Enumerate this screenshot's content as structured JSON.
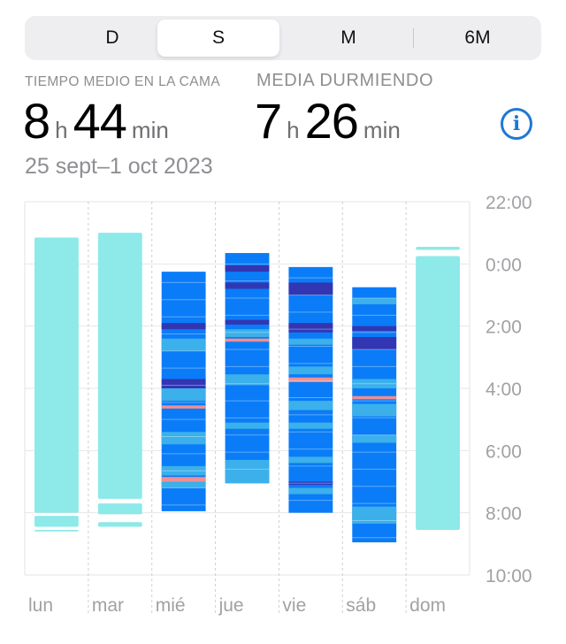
{
  "segments": {
    "items": [
      {
        "label": "D"
      },
      {
        "label": "S"
      },
      {
        "label": "M"
      },
      {
        "label": "6M"
      }
    ],
    "selected": "S"
  },
  "stats": {
    "in_bed_label": "TIEMPO MEDIO EN LA CAMA",
    "in_bed_hours": "8",
    "in_bed_minutes": "44",
    "asleep_label": "MEDIA DURMIENDO",
    "asleep_hours": "7",
    "asleep_minutes": "26",
    "unit_h": "h",
    "unit_min": "min",
    "date_range": "25 sept–1 oct 2023"
  },
  "info_icon": "info-circle-icon",
  "colors": {
    "in_bed": "#8ee9e9",
    "awake": "#f08f90",
    "rem": "#3bb0ea",
    "core": "#0a7cf8",
    "deep": "#3336b3",
    "accent": "#1f77d6"
  },
  "chart_data": {
    "type": "bar",
    "title": "",
    "xlabel": "",
    "ylabel": "",
    "categories": [
      "lun",
      "mar",
      "mié",
      "jue",
      "vie",
      "sáb",
      "dom"
    ],
    "y_ticks": [
      "22:00",
      "0:00",
      "2:00",
      "4:00",
      "6:00",
      "8:00",
      "10:00"
    ],
    "y_range_hours_from_2200": [
      0,
      12
    ],
    "grid": true,
    "in_bed_bars": [
      {
        "day": "lun",
        "segments": [
          [
            1.15,
            10.0
          ],
          [
            10.1,
            10.45
          ],
          [
            10.55,
            10.6
          ]
        ]
      },
      {
        "day": "mar",
        "segments": [
          [
            1.0,
            9.55
          ],
          [
            9.7,
            10.05
          ],
          [
            10.3,
            10.45
          ]
        ]
      },
      {
        "day": "mié",
        "segments": []
      },
      {
        "day": "jue",
        "segments": []
      },
      {
        "day": "vie",
        "segments": []
      },
      {
        "day": "sáb",
        "segments": []
      },
      {
        "day": "dom",
        "segments": [
          [
            1.45,
            1.55
          ],
          [
            1.75,
            10.55
          ]
        ]
      }
    ],
    "sleep_bars": [
      {
        "day": "mié",
        "start": 2.25,
        "end": 9.95
      },
      {
        "day": "jue",
        "start": 1.65,
        "end": 9.05
      },
      {
        "day": "vie",
        "start": 2.1,
        "end": 10.0
      },
      {
        "day": "sáb",
        "start": 2.75,
        "end": 10.95
      }
    ],
    "stages": {
      "mié": [
        {
          "s": "core",
          "a": 2.25,
          "b": 9.95
        },
        {
          "s": "deep",
          "a": 3.9,
          "b": 4.1
        },
        {
          "s": "rem",
          "a": 4.4,
          "b": 4.8
        },
        {
          "s": "deep",
          "a": 5.7,
          "b": 6.0
        },
        {
          "s": "rem",
          "a": 6.0,
          "b": 6.4
        },
        {
          "s": "awake",
          "a": 6.55,
          "b": 6.65
        },
        {
          "s": "rem",
          "a": 7.4,
          "b": 7.8
        },
        {
          "s": "rem",
          "a": 8.5,
          "b": 8.8
        },
        {
          "s": "awake",
          "a": 8.85,
          "b": 9.0
        },
        {
          "s": "rem",
          "a": 9.0,
          "b": 9.2
        }
      ],
      "jue": [
        {
          "s": "core",
          "a": 1.65,
          "b": 9.05
        },
        {
          "s": "deep",
          "a": 2.05,
          "b": 2.25
        },
        {
          "s": "deep",
          "a": 2.6,
          "b": 2.8
        },
        {
          "s": "deep",
          "a": 3.8,
          "b": 3.95
        },
        {
          "s": "rem",
          "a": 4.1,
          "b": 4.35
        },
        {
          "s": "awake",
          "a": 4.4,
          "b": 4.5
        },
        {
          "s": "rem",
          "a": 5.55,
          "b": 5.9
        },
        {
          "s": "rem",
          "a": 7.1,
          "b": 7.3
        },
        {
          "s": "rem",
          "a": 8.3,
          "b": 9.05
        }
      ],
      "vie": [
        {
          "s": "core",
          "a": 2.1,
          "b": 10.0
        },
        {
          "s": "deep",
          "a": 2.6,
          "b": 3.0
        },
        {
          "s": "deep",
          "a": 3.9,
          "b": 4.2
        },
        {
          "s": "rem",
          "a": 4.4,
          "b": 4.6
        },
        {
          "s": "rem",
          "a": 5.3,
          "b": 5.55
        },
        {
          "s": "awake",
          "a": 5.65,
          "b": 5.8
        },
        {
          "s": "rem",
          "a": 6.4,
          "b": 6.7
        },
        {
          "s": "rem",
          "a": 7.1,
          "b": 7.3
        },
        {
          "s": "rem",
          "a": 8.2,
          "b": 8.4
        },
        {
          "s": "deep",
          "a": 9.0,
          "b": 9.1
        },
        {
          "s": "rem",
          "a": 9.2,
          "b": 9.4
        }
      ],
      "sáb": [
        {
          "s": "core",
          "a": 2.75,
          "b": 10.95
        },
        {
          "s": "rem",
          "a": 3.1,
          "b": 3.3
        },
        {
          "s": "deep",
          "a": 4.0,
          "b": 4.15
        },
        {
          "s": "deep",
          "a": 4.35,
          "b": 4.75
        },
        {
          "s": "rem",
          "a": 5.7,
          "b": 6.0
        },
        {
          "s": "awake",
          "a": 6.25,
          "b": 6.35
        },
        {
          "s": "rem",
          "a": 6.5,
          "b": 6.9
        },
        {
          "s": "rem",
          "a": 7.5,
          "b": 7.75
        },
        {
          "s": "rem",
          "a": 9.8,
          "b": 10.35
        }
      ]
    }
  }
}
